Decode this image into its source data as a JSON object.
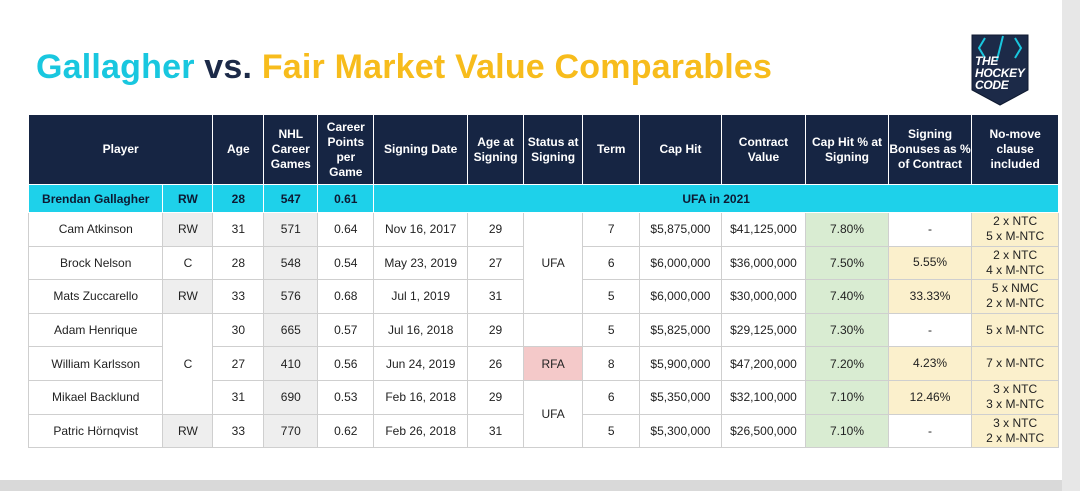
{
  "title": {
    "part1": "Gallagher",
    "part2": " vs. ",
    "part3": "Fair Market Value Comparables"
  },
  "logo": {
    "line1": "THE",
    "line2": "HOCKEY",
    "line3": "CODE",
    "colors": {
      "bg": "#1c2a48",
      "accent": "#19c7df"
    }
  },
  "colors": {
    "header_bg": "#162543",
    "highlight_row": "#1ed1ea",
    "title_cyan": "#19c7df",
    "title_navy": "#1c2a48",
    "title_yellow": "#f7bc1c",
    "cap_pct_bg": "#d9ecd2",
    "bonus_bg": "#fbf0cc",
    "rfa_bg": "#f4c9c9"
  },
  "headers": {
    "player": "Player",
    "age": "Age",
    "games": "NHL Career Games",
    "ppg": "Career Points per Game",
    "signing_date": "Signing Date",
    "age_at_signing": "Age at Signing",
    "status": "Status at Signing",
    "term": "Term",
    "cap_hit": "Cap Hit",
    "contract_value": "Contract Value",
    "cap_pct": "Cap Hit % at Signing",
    "bonus": "Signing Bonuses as % of Contract",
    "nmc": "No-move clause included"
  },
  "highlight": {
    "name": "Brendan Gallagher",
    "pos": "RW",
    "age": "28",
    "games": "547",
    "ppg": "0.61",
    "status": "UFA in 2021"
  },
  "positions": {
    "rw": "RW",
    "c_nelson": "C",
    "rw_zucc": "RW",
    "c_group": "C",
    "rw_hornqvist": "RW"
  },
  "status_groups": {
    "ufa1": "UFA",
    "rfa": "RFA",
    "ufa2": "UFA"
  },
  "rows": [
    {
      "name": "Cam Atkinson",
      "age": "31",
      "games": "571",
      "ppg": "0.64",
      "date": "Nov 16, 2017",
      "age_s": "29",
      "term": "7",
      "cap": "$5,875,000",
      "value": "$41,125,000",
      "pct": "7.80%",
      "bonus": "-",
      "nmc1": "2 x NTC",
      "nmc2": "5 x M-NTC"
    },
    {
      "name": "Brock Nelson",
      "age": "28",
      "games": "548",
      "ppg": "0.54",
      "date": "May 23, 2019",
      "age_s": "27",
      "term": "6",
      "cap": "$6,000,000",
      "value": "$36,000,000",
      "pct": "7.50%",
      "bonus": "5.55%",
      "nmc1": "2 x NTC",
      "nmc2": "4 x M-NTC"
    },
    {
      "name": "Mats Zuccarello",
      "age": "33",
      "games": "576",
      "ppg": "0.68",
      "date": "Jul 1, 2019",
      "age_s": "31",
      "term": "5",
      "cap": "$6,000,000",
      "value": "$30,000,000",
      "pct": "7.40%",
      "bonus": "33.33%",
      "nmc1": "5 x NMC",
      "nmc2": "2 x M-NTC"
    },
    {
      "name": "Adam Henrique",
      "age": "30",
      "games": "665",
      "ppg": "0.57",
      "date": "Jul 16, 2018",
      "age_s": "29",
      "term": "5",
      "cap": "$5,825,000",
      "value": "$29,125,000",
      "pct": "7.30%",
      "bonus": "-",
      "nmc1": "5 x M-NTC",
      "nmc2": ""
    },
    {
      "name": "William Karlsson",
      "age": "27",
      "games": "410",
      "ppg": "0.56",
      "date": "Jun 24, 2019",
      "age_s": "26",
      "term": "8",
      "cap": "$5,900,000",
      "value": "$47,200,000",
      "pct": "7.20%",
      "bonus": "4.23%",
      "nmc1": "7 x M-NTC",
      "nmc2": ""
    },
    {
      "name": "Mikael Backlund",
      "age": "31",
      "games": "690",
      "ppg": "0.53",
      "date": "Feb 16, 2018",
      "age_s": "29",
      "term": "6",
      "cap": "$5,350,000",
      "value": "$32,100,000",
      "pct": "7.10%",
      "bonus": "12.46%",
      "nmc1": "3 x NTC",
      "nmc2": "3 x M-NTC"
    },
    {
      "name": "Patric Hörnqvist",
      "age": "33",
      "games": "770",
      "ppg": "0.62",
      "date": "Feb 26, 2018",
      "age_s": "31",
      "term": "5",
      "cap": "$5,300,000",
      "value": "$26,500,000",
      "pct": "7.10%",
      "bonus": "-",
      "nmc1": "3 x NTC",
      "nmc2": "2 x M-NTC"
    }
  ]
}
